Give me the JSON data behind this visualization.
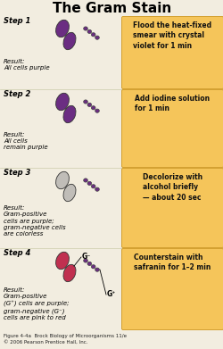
{
  "title": "The Gram Stain",
  "bg_color": "#f2ede0",
  "orange_box_color": "#f5c55a",
  "orange_box_edge": "#d4a030",
  "steps": [
    {
      "step_label": "Step 1",
      "result_text": "Result:\nAll cells purple",
      "instruction": "Flood the heat-fixed\nsmear with crystal\nviolet for 1 min",
      "large_oval_color": "#6b2d82",
      "small_oval_color": "#6b2d82",
      "chain_color": "#6b2d82",
      "show_labels": false
    },
    {
      "step_label": "Step 2",
      "result_text": "Result:\nAll cells\nremain purple",
      "instruction": "Add iodine solution\nfor 1 min",
      "large_oval_color": "#6b2d82",
      "small_oval_color": "#6b2d82",
      "chain_color": "#6b2d82",
      "show_labels": false
    },
    {
      "step_label": "Step 3",
      "result_text": "Result:\nGram-positive\ncells are purple;\ngram-negative cells\nare colorless",
      "instruction": "Decolorize with\nalcohol briefly\n— about 20 sec",
      "large_oval_color": "#c0bdb8",
      "small_oval_color": "#c0bdb8",
      "chain_color": "#6b2d82",
      "show_labels": false
    },
    {
      "step_label": "Step 4",
      "result_text": "Result:\nGram-positive\n(G⁺) cells are purple;\ngram-negative (G⁻)\ncells are pink to red",
      "instruction": "Counterstain with\nsafranin for 1–2 min",
      "large_oval_color": "#c03050",
      "small_oval_color": "#c03050",
      "chain_color": "#6b2d82",
      "show_labels": true
    }
  ],
  "footer1": "Figure 4-4a  Brock Biology of Microorganisms 11/e",
  "footer2": "© 2006 Pearson Prentice Hall, Inc.",
  "purple": "#6b2d82",
  "gray": "#c0bdb8",
  "pink": "#c03050"
}
